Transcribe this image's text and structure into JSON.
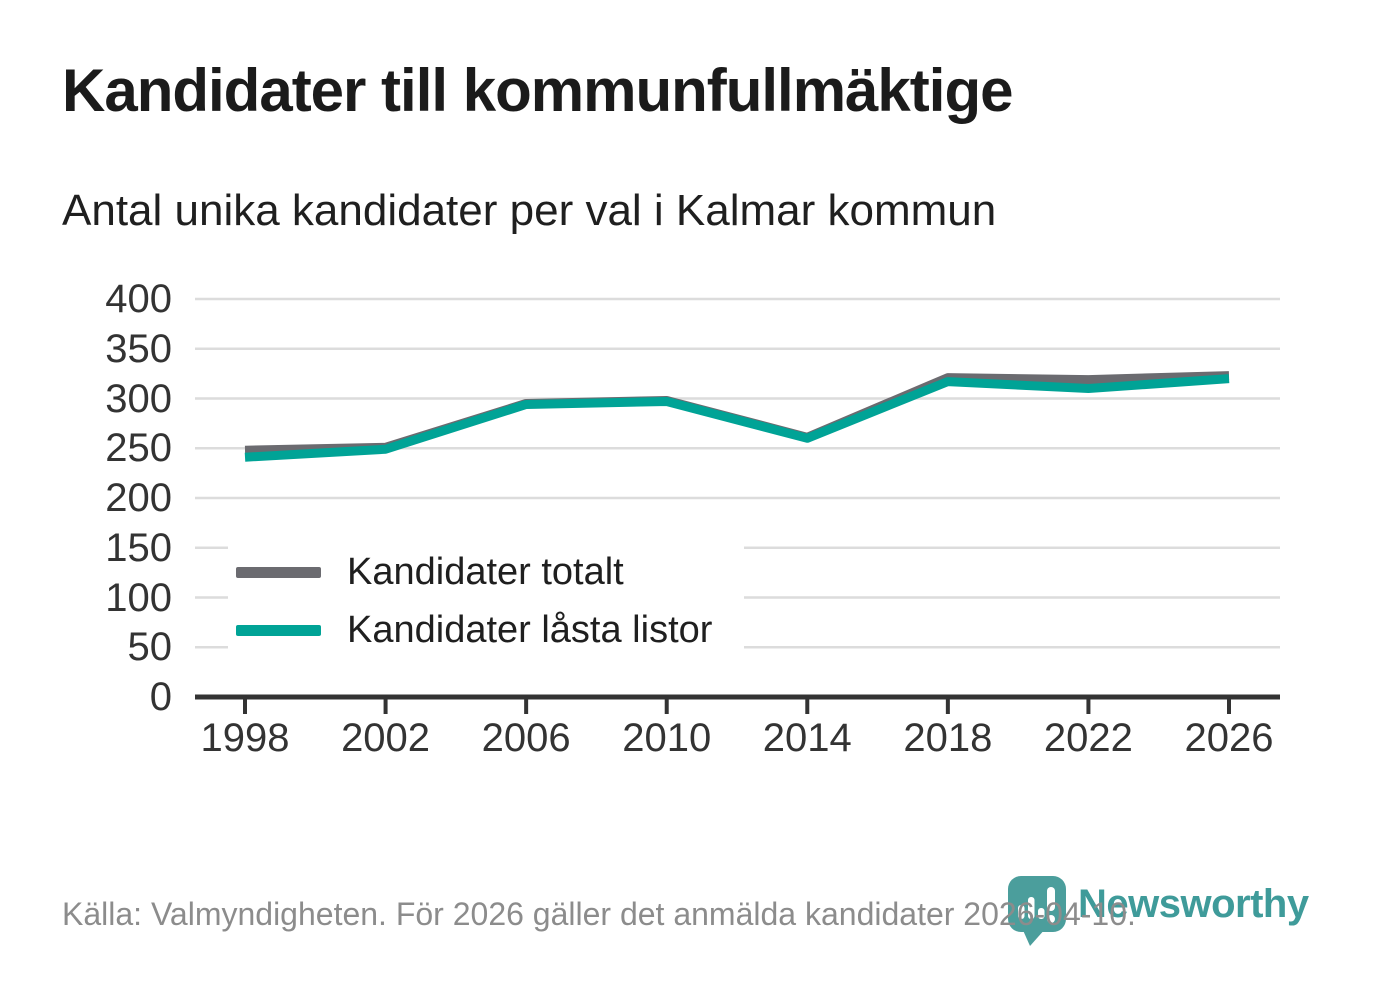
{
  "chart_data": {
    "type": "line",
    "title": "Kandidater till kommunfullmäktige",
    "subtitle": "Antal unika kandidater per val i Kalmar kommun",
    "categories": [
      "1998",
      "2002",
      "2006",
      "2010",
      "2014",
      "2018",
      "2022",
      "2026"
    ],
    "series": [
      {
        "name": "Kandidater totalt",
        "color": "#6b6b70",
        "values": [
          248,
          251,
          295,
          298,
          261,
          321,
          319,
          323
        ]
      },
      {
        "name": "Kandidater låsta listor",
        "color": "#00a396",
        "values": [
          241,
          249,
          294,
          297,
          260,
          317,
          310,
          320
        ]
      }
    ],
    "xlabel": "",
    "ylabel": "",
    "ylim": [
      0,
      400
    ],
    "yticks": [
      0,
      50,
      100,
      150,
      200,
      250,
      300,
      350,
      400
    ],
    "grid": true,
    "legend_position": "inside-bottom-left"
  },
  "footer": {
    "source": "Källa: Valmyndigheten. För 2026 gäller det anmälda kandidater 2026-04-10.",
    "brand": "Newsworthy"
  },
  "colors": {
    "accent_teal": "#00a396",
    "series_gray": "#6b6b70",
    "grid": "#dcdcdc",
    "axis": "#333333",
    "tick_text": "#333333",
    "title_text": "#1b1b1b",
    "source_text": "#8c8c8c",
    "logo_pin": "#4b9e9c",
    "logo_text": "#3f9b9a"
  }
}
